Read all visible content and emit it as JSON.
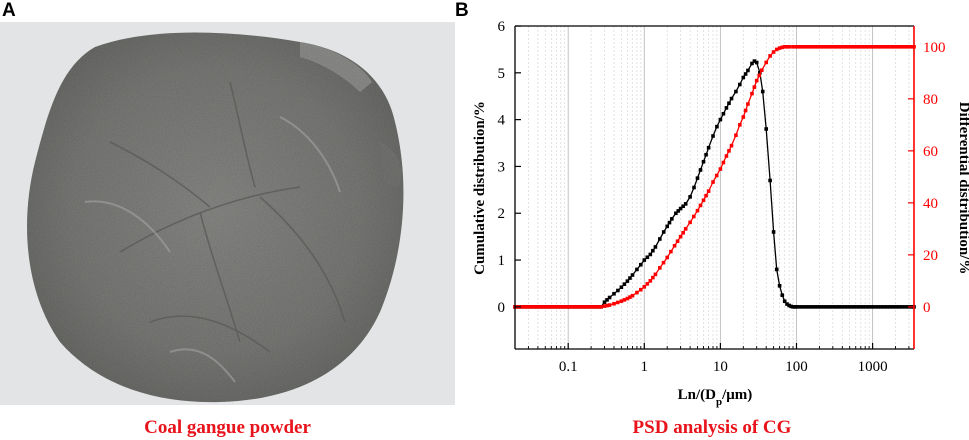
{
  "panels": {
    "a": {
      "letter": "A",
      "caption": "Coal gangue powder"
    },
    "b": {
      "letter": "B",
      "caption": "PSD analysis of CG"
    }
  },
  "colors": {
    "caption": "#e8131b",
    "left_axis": "#000000",
    "right_axis": "#ff0000"
  },
  "chart_data": {
    "type": "line",
    "xlabel": "Ln/(Dp/μm)",
    "ylabel_left": "Cumulative distribution/%",
    "ylabel_right": "Differential distribution/%",
    "x_scale": "log",
    "xlim": [
      0.02,
      3500
    ],
    "ylim_left": [
      -0.9,
      6
    ],
    "ylim_right": [
      -16.2,
      108
    ],
    "x_ticks": [
      0.1,
      1,
      10,
      100,
      1000
    ],
    "x_tick_labels": [
      "0.1",
      "1",
      "10",
      "100",
      "1000"
    ],
    "y_ticks_left": [
      0,
      1,
      2,
      3,
      4,
      5,
      6
    ],
    "y_ticks_right": [
      0,
      20,
      40,
      60,
      80,
      100
    ],
    "grid": "vertical log minor gridlines",
    "series": [
      {
        "axis": "left",
        "color": "#000000",
        "marker": "square",
        "x": [
          0.02,
          0.27,
          0.3,
          0.35,
          0.4,
          0.45,
          0.5,
          0.6,
          0.7,
          0.8,
          0.9,
          1.0,
          1.2,
          1.4,
          1.6,
          1.8,
          2.0,
          2.3,
          2.6,
          3.0,
          3.5,
          4.0,
          4.5,
          5.0,
          6.0,
          7.0,
          8.0,
          9.0,
          10,
          12,
          14,
          16,
          18,
          20,
          23,
          26,
          28,
          30,
          33,
          36,
          40,
          45,
          50,
          55,
          60,
          65,
          70,
          75,
          80,
          85,
          90,
          95,
          100,
          3500
        ],
        "y": [
          0,
          0,
          0.1,
          0.2,
          0.28,
          0.35,
          0.42,
          0.55,
          0.68,
          0.8,
          0.9,
          1.0,
          1.12,
          1.28,
          1.45,
          1.6,
          1.72,
          1.88,
          2.0,
          2.1,
          2.2,
          2.35,
          2.55,
          2.75,
          3.1,
          3.4,
          3.65,
          3.85,
          4.0,
          4.25,
          4.45,
          4.6,
          4.75,
          4.9,
          5.05,
          5.2,
          5.25,
          5.22,
          5.0,
          4.6,
          3.8,
          2.7,
          1.6,
          0.8,
          0.45,
          0.25,
          0.12,
          0.06,
          0.03,
          0.01,
          0.0,
          0.0,
          0.0,
          0
        ]
      },
      {
        "axis": "right",
        "color": "#ff0000",
        "marker": "square",
        "x": [
          0.02,
          0.27,
          0.3,
          0.35,
          0.4,
          0.5,
          0.6,
          0.7,
          0.8,
          0.9,
          1.0,
          1.2,
          1.4,
          1.6,
          2.0,
          2.5,
          3.0,
          3.5,
          4.0,
          5.0,
          6.0,
          7.0,
          8.0,
          10,
          12,
          14,
          16,
          18,
          20,
          23,
          26,
          30,
          35,
          40,
          45,
          50,
          55,
          60,
          65,
          70,
          75,
          80,
          90,
          100,
          3500
        ],
        "y": [
          0,
          0,
          0.3,
          0.7,
          1.2,
          2.2,
          3.2,
          4.3,
          5.5,
          6.6,
          7.7,
          10,
          12.5,
          15,
          19,
          23.5,
          27,
          30,
          32.5,
          37,
          41,
          44.5,
          48,
          53,
          58,
          62,
          66,
          70,
          73,
          78,
          82,
          87,
          91,
          94,
          96.5,
          98,
          99,
          99.5,
          99.8,
          100,
          100,
          100,
          100,
          100,
          100
        ]
      }
    ]
  }
}
